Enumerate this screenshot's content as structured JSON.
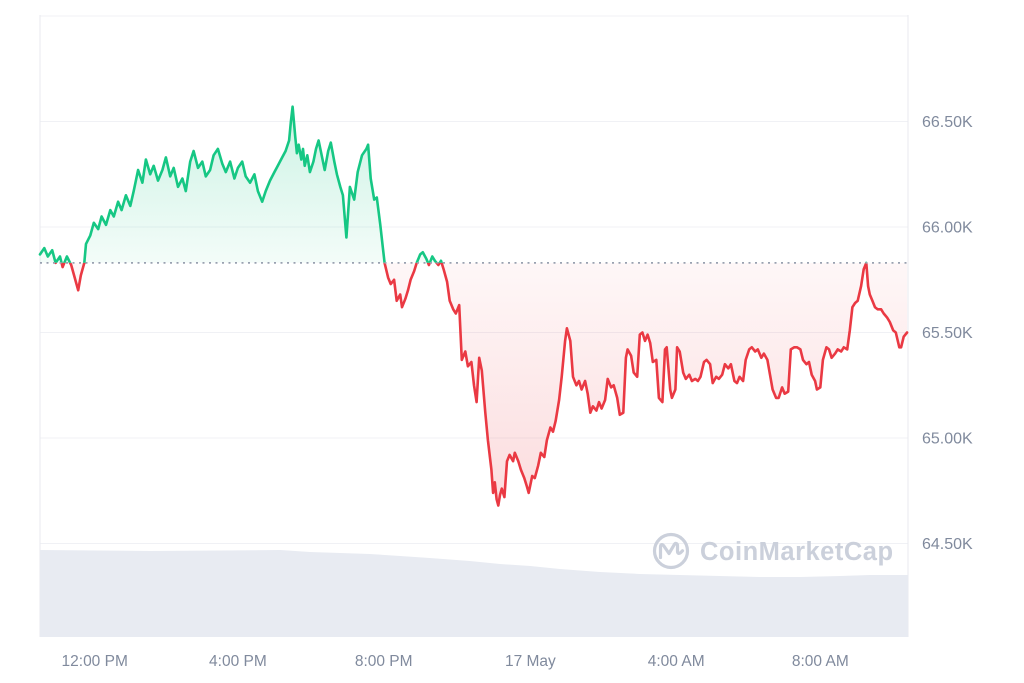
{
  "watermark": {
    "label": "CoinMarketCap"
  },
  "chart_data": {
    "type": "area",
    "description": "24h cryptocurrency price chart, price in thousands USD (K). Green segment above previous-close baseline, red below.",
    "baseline_price": 65.83,
    "y_axis": {
      "unit": "K",
      "range": [
        64.06,
        67.0
      ],
      "gridline_prices": [
        67.0,
        66.5,
        66.0,
        65.5,
        65.0,
        64.5
      ],
      "ticks": [
        {
          "label": "66.50K",
          "price": 66.5
        },
        {
          "label": "66.00K",
          "price": 66.0
        },
        {
          "label": "65.50K",
          "price": 65.5
        },
        {
          "label": "65.00K",
          "price": 65.0
        },
        {
          "label": "64.50K",
          "price": 64.5
        }
      ],
      "grid": true,
      "position": "right"
    },
    "x_axis": {
      "ticks": [
        {
          "label": "12:00 PM",
          "f": 0.063
        },
        {
          "label": "4:00 PM",
          "f": 0.228
        },
        {
          "label": "8:00 PM",
          "f": 0.396
        },
        {
          "label": "17 May",
          "f": 0.565
        },
        {
          "label": "4:00 AM",
          "f": 0.733
        },
        {
          "label": "8:00 AM",
          "f": 0.899
        }
      ]
    },
    "colors": {
      "up": "#16c784",
      "down": "#ea3943",
      "grid": "#f0f1f5",
      "border": "#e8eaef",
      "axis_text": "#808a9d",
      "baseline_dots": "#99a1b0",
      "volume_fill": "#e8ebf2",
      "watermark": "#cbd0db"
    },
    "series": {
      "name": "price",
      "points": [
        [
          0.0,
          65.87
        ],
        [
          0.005,
          65.9
        ],
        [
          0.009,
          65.86
        ],
        [
          0.014,
          65.89
        ],
        [
          0.018,
          65.83
        ],
        [
          0.023,
          65.86
        ],
        [
          0.026,
          65.81
        ],
        [
          0.031,
          65.86
        ],
        [
          0.036,
          65.82
        ],
        [
          0.04,
          65.76
        ],
        [
          0.044,
          65.7
        ],
        [
          0.047,
          65.77
        ],
        [
          0.051,
          65.83
        ],
        [
          0.053,
          65.92
        ],
        [
          0.058,
          65.96
        ],
        [
          0.062,
          66.02
        ],
        [
          0.067,
          65.99
        ],
        [
          0.071,
          66.05
        ],
        [
          0.076,
          66.01
        ],
        [
          0.081,
          66.08
        ],
        [
          0.085,
          66.05
        ],
        [
          0.09,
          66.12
        ],
        [
          0.094,
          66.08
        ],
        [
          0.099,
          66.15
        ],
        [
          0.104,
          66.1
        ],
        [
          0.108,
          66.17
        ],
        [
          0.113,
          66.27
        ],
        [
          0.118,
          66.21
        ],
        [
          0.122,
          66.32
        ],
        [
          0.127,
          66.25
        ],
        [
          0.131,
          66.29
        ],
        [
          0.136,
          66.22
        ],
        [
          0.141,
          66.27
        ],
        [
          0.145,
          66.33
        ],
        [
          0.15,
          66.24
        ],
        [
          0.154,
          66.28
        ],
        [
          0.159,
          66.19
        ],
        [
          0.164,
          66.23
        ],
        [
          0.168,
          66.17
        ],
        [
          0.173,
          66.31
        ],
        [
          0.177,
          66.36
        ],
        [
          0.182,
          66.28
        ],
        [
          0.187,
          66.31
        ],
        [
          0.191,
          66.24
        ],
        [
          0.196,
          66.27
        ],
        [
          0.2,
          66.34
        ],
        [
          0.205,
          66.37
        ],
        [
          0.21,
          66.3
        ],
        [
          0.214,
          66.26
        ],
        [
          0.219,
          66.31
        ],
        [
          0.224,
          66.23
        ],
        [
          0.228,
          66.28
        ],
        [
          0.233,
          66.31
        ],
        [
          0.237,
          66.24
        ],
        [
          0.242,
          66.21
        ],
        [
          0.247,
          66.25
        ],
        [
          0.251,
          66.17
        ],
        [
          0.256,
          66.12
        ],
        [
          0.26,
          66.17
        ],
        [
          0.265,
          66.22
        ],
        [
          0.27,
          66.26
        ],
        [
          0.274,
          66.29
        ],
        [
          0.279,
          66.33
        ],
        [
          0.283,
          66.36
        ],
        [
          0.287,
          66.41
        ],
        [
          0.289,
          66.5
        ],
        [
          0.291,
          66.57
        ],
        [
          0.294,
          66.43
        ],
        [
          0.296,
          66.35
        ],
        [
          0.298,
          66.39
        ],
        [
          0.301,
          66.32
        ],
        [
          0.303,
          66.37
        ],
        [
          0.305,
          66.29
        ],
        [
          0.308,
          66.34
        ],
        [
          0.311,
          66.26
        ],
        [
          0.315,
          66.31
        ],
        [
          0.318,
          66.37
        ],
        [
          0.321,
          66.41
        ],
        [
          0.325,
          66.33
        ],
        [
          0.328,
          66.27
        ],
        [
          0.332,
          66.36
        ],
        [
          0.335,
          66.4
        ],
        [
          0.339,
          66.31
        ],
        [
          0.342,
          66.25
        ],
        [
          0.346,
          66.19
        ],
        [
          0.349,
          66.15
        ],
        [
          0.353,
          65.95
        ],
        [
          0.357,
          66.19
        ],
        [
          0.362,
          66.13
        ],
        [
          0.366,
          66.26
        ],
        [
          0.371,
          66.34
        ],
        [
          0.376,
          66.37
        ],
        [
          0.378,
          66.39
        ],
        [
          0.381,
          66.23
        ],
        [
          0.385,
          66.13
        ],
        [
          0.388,
          66.14
        ],
        [
          0.392,
          66.01
        ],
        [
          0.395,
          65.9
        ],
        [
          0.397,
          65.83
        ],
        [
          0.401,
          65.76
        ],
        [
          0.404,
          65.73
        ],
        [
          0.408,
          65.75
        ],
        [
          0.411,
          65.65
        ],
        [
          0.415,
          65.68
        ],
        [
          0.417,
          65.62
        ],
        [
          0.421,
          65.66
        ],
        [
          0.424,
          65.7
        ],
        [
          0.427,
          65.75
        ],
        [
          0.431,
          65.79
        ],
        [
          0.434,
          65.83
        ],
        [
          0.438,
          65.87
        ],
        [
          0.441,
          65.88
        ],
        [
          0.445,
          65.85
        ],
        [
          0.448,
          65.82
        ],
        [
          0.452,
          65.86
        ],
        [
          0.455,
          65.84
        ],
        [
          0.459,
          65.82
        ],
        [
          0.462,
          65.84
        ],
        [
          0.465,
          65.8
        ],
        [
          0.469,
          65.74
        ],
        [
          0.472,
          65.65
        ],
        [
          0.476,
          65.61
        ],
        [
          0.479,
          65.59
        ],
        [
          0.483,
          65.63
        ],
        [
          0.486,
          65.37
        ],
        [
          0.49,
          65.41
        ],
        [
          0.493,
          65.34
        ],
        [
          0.497,
          65.36
        ],
        [
          0.5,
          65.25
        ],
        [
          0.503,
          65.17
        ],
        [
          0.506,
          65.38
        ],
        [
          0.509,
          65.32
        ],
        [
          0.513,
          65.12
        ],
        [
          0.516,
          64.99
        ],
        [
          0.52,
          64.85
        ],
        [
          0.522,
          64.74
        ],
        [
          0.524,
          64.79
        ],
        [
          0.526,
          64.71
        ],
        [
          0.528,
          64.68
        ],
        [
          0.53,
          64.73
        ],
        [
          0.532,
          64.76
        ],
        [
          0.535,
          64.72
        ],
        [
          0.538,
          64.89
        ],
        [
          0.541,
          64.92
        ],
        [
          0.545,
          64.89
        ],
        [
          0.547,
          64.93
        ],
        [
          0.551,
          64.89
        ],
        [
          0.554,
          64.85
        ],
        [
          0.558,
          64.81
        ],
        [
          0.561,
          64.77
        ],
        [
          0.563,
          64.74
        ],
        [
          0.567,
          64.82
        ],
        [
          0.57,
          64.81
        ],
        [
          0.574,
          64.87
        ],
        [
          0.577,
          64.93
        ],
        [
          0.581,
          64.91
        ],
        [
          0.584,
          64.99
        ],
        [
          0.588,
          65.05
        ],
        [
          0.591,
          65.03
        ],
        [
          0.594,
          65.08
        ],
        [
          0.598,
          65.18
        ],
        [
          0.601,
          65.29
        ],
        [
          0.605,
          65.46
        ],
        [
          0.607,
          65.52
        ],
        [
          0.611,
          65.46
        ],
        [
          0.614,
          65.29
        ],
        [
          0.618,
          65.25
        ],
        [
          0.621,
          65.27
        ],
        [
          0.624,
          65.23
        ],
        [
          0.628,
          65.27
        ],
        [
          0.631,
          65.21
        ],
        [
          0.634,
          65.12
        ],
        [
          0.637,
          65.15
        ],
        [
          0.641,
          65.13
        ],
        [
          0.644,
          65.17
        ],
        [
          0.647,
          65.14
        ],
        [
          0.651,
          65.18
        ],
        [
          0.654,
          65.28
        ],
        [
          0.658,
          65.24
        ],
        [
          0.661,
          65.25
        ],
        [
          0.665,
          65.19
        ],
        [
          0.668,
          65.11
        ],
        [
          0.672,
          65.12
        ],
        [
          0.675,
          65.38
        ],
        [
          0.677,
          65.42
        ],
        [
          0.681,
          65.39
        ],
        [
          0.684,
          65.31
        ],
        [
          0.688,
          65.29
        ],
        [
          0.691,
          65.49
        ],
        [
          0.694,
          65.5
        ],
        [
          0.697,
          65.46
        ],
        [
          0.7,
          65.49
        ],
        [
          0.703,
          65.45
        ],
        [
          0.706,
          65.36
        ],
        [
          0.71,
          65.37
        ],
        [
          0.713,
          65.19
        ],
        [
          0.717,
          65.17
        ],
        [
          0.72,
          65.42
        ],
        [
          0.722,
          65.43
        ],
        [
          0.726,
          65.23
        ],
        [
          0.728,
          65.19
        ],
        [
          0.732,
          65.23
        ],
        [
          0.734,
          65.43
        ],
        [
          0.737,
          65.41
        ],
        [
          0.741,
          65.31
        ],
        [
          0.744,
          65.28
        ],
        [
          0.748,
          65.3
        ],
        [
          0.751,
          65.27
        ],
        [
          0.755,
          65.28
        ],
        [
          0.758,
          65.27
        ],
        [
          0.761,
          65.29
        ],
        [
          0.765,
          65.36
        ],
        [
          0.768,
          65.37
        ],
        [
          0.772,
          65.35
        ],
        [
          0.775,
          65.26
        ],
        [
          0.779,
          65.29
        ],
        [
          0.782,
          65.28
        ],
        [
          0.786,
          65.3
        ],
        [
          0.789,
          65.35
        ],
        [
          0.793,
          65.33
        ],
        [
          0.796,
          65.35
        ],
        [
          0.8,
          65.27
        ],
        [
          0.803,
          65.26
        ],
        [
          0.806,
          65.29
        ],
        [
          0.81,
          65.27
        ],
        [
          0.813,
          65.37
        ],
        [
          0.817,
          65.42
        ],
        [
          0.82,
          65.43
        ],
        [
          0.824,
          65.41
        ],
        [
          0.827,
          65.42
        ],
        [
          0.831,
          65.38
        ],
        [
          0.834,
          65.4
        ],
        [
          0.838,
          65.37
        ],
        [
          0.841,
          65.3
        ],
        [
          0.844,
          65.23
        ],
        [
          0.848,
          65.19
        ],
        [
          0.851,
          65.19
        ],
        [
          0.855,
          65.24
        ],
        [
          0.858,
          65.21
        ],
        [
          0.862,
          65.22
        ],
        [
          0.865,
          65.42
        ],
        [
          0.869,
          65.43
        ],
        [
          0.872,
          65.43
        ],
        [
          0.876,
          65.42
        ],
        [
          0.879,
          65.37
        ],
        [
          0.883,
          65.35
        ],
        [
          0.886,
          65.36
        ],
        [
          0.889,
          65.3
        ],
        [
          0.893,
          65.27
        ],
        [
          0.895,
          65.23
        ],
        [
          0.899,
          65.24
        ],
        [
          0.902,
          65.37
        ],
        [
          0.906,
          65.43
        ],
        [
          0.909,
          65.42
        ],
        [
          0.912,
          65.38
        ],
        [
          0.916,
          65.4
        ],
        [
          0.919,
          65.42
        ],
        [
          0.923,
          65.41
        ],
        [
          0.926,
          65.43
        ],
        [
          0.93,
          65.42
        ],
        [
          0.933,
          65.51
        ],
        [
          0.936,
          65.62
        ],
        [
          0.939,
          65.64
        ],
        [
          0.942,
          65.65
        ],
        [
          0.946,
          65.72
        ],
        [
          0.949,
          65.8
        ],
        [
          0.952,
          65.83
        ],
        [
          0.954,
          65.72
        ],
        [
          0.956,
          65.68
        ],
        [
          0.959,
          65.65
        ],
        [
          0.962,
          65.62
        ],
        [
          0.965,
          65.61
        ],
        [
          0.969,
          65.61
        ],
        [
          0.972,
          65.59
        ],
        [
          0.976,
          65.57
        ],
        [
          0.979,
          65.55
        ],
        [
          0.983,
          65.51
        ],
        [
          0.986,
          65.5
        ],
        [
          0.99,
          65.43
        ],
        [
          0.992,
          65.43
        ],
        [
          0.995,
          65.48
        ],
        [
          0.999,
          65.5
        ]
      ]
    },
    "volume_area": {
      "note": "secondary band at chart bottom, height fraction of 89px band",
      "points": [
        [
          0.0,
          0.978
        ],
        [
          0.127,
          0.966
        ],
        [
          0.277,
          0.978
        ],
        [
          0.311,
          0.955
        ],
        [
          0.346,
          0.944
        ],
        [
          0.38,
          0.933
        ],
        [
          0.415,
          0.91
        ],
        [
          0.449,
          0.888
        ],
        [
          0.495,
          0.854
        ],
        [
          0.53,
          0.82
        ],
        [
          0.565,
          0.798
        ],
        [
          0.599,
          0.764
        ],
        [
          0.645,
          0.73
        ],
        [
          0.691,
          0.708
        ],
        [
          0.737,
          0.697
        ],
        [
          0.783,
          0.685
        ],
        [
          0.829,
          0.674
        ],
        [
          0.876,
          0.674
        ],
        [
          0.922,
          0.685
        ],
        [
          0.956,
          0.697
        ],
        [
          1.0,
          0.697
        ]
      ]
    }
  }
}
